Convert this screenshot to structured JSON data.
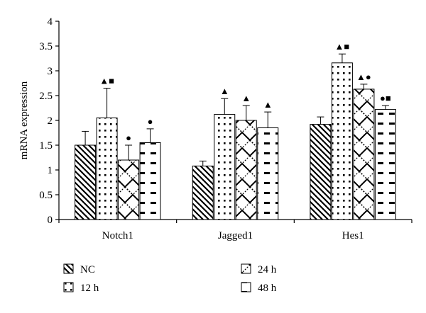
{
  "chart_data": {
    "type": "bar",
    "title": "",
    "xlabel": "",
    "ylabel": "mRNA expression",
    "ylim": [
      0,
      4
    ],
    "yticks": [
      "0",
      "0.5",
      "1",
      "1.5",
      "2",
      "2.5",
      "3",
      "3.5",
      "4"
    ],
    "categories": [
      "Notch1",
      "Jagged1",
      "Hes1"
    ],
    "series": [
      {
        "name": "NC",
        "pattern": "diagonal-stripes",
        "values": [
          1.5,
          1.08,
          1.92
        ],
        "errors": [
          0.28,
          0.1,
          0.15
        ]
      },
      {
        "name": "12 h",
        "pattern": "dots",
        "values": [
          2.05,
          2.12,
          3.16
        ],
        "errors": [
          0.6,
          0.32,
          0.18
        ]
      },
      {
        "name": "24 h",
        "pattern": "diagonal-zigzag",
        "values": [
          1.2,
          2.0,
          2.63
        ],
        "errors": [
          0.3,
          0.3,
          0.1
        ]
      },
      {
        "name": "48 h",
        "pattern": "horizontal-dashes",
        "values": [
          1.55,
          1.85,
          2.22
        ],
        "errors": [
          0.28,
          0.32,
          0.08
        ]
      }
    ],
    "markers": [
      [
        "",
        "▲■",
        "●",
        "●"
      ],
      [
        "",
        "▲",
        "▲",
        "▲"
      ],
      [
        "",
        "▲■",
        "▲●",
        "●■"
      ]
    ],
    "legend": {
      "placement": "bottom",
      "entries": [
        "NC",
        "12 h",
        "24 h",
        "48 h"
      ]
    },
    "grid": false,
    "colors": {
      "bar_fill": "#ffffff",
      "stroke": "#000000",
      "pattern": "#000000"
    }
  }
}
